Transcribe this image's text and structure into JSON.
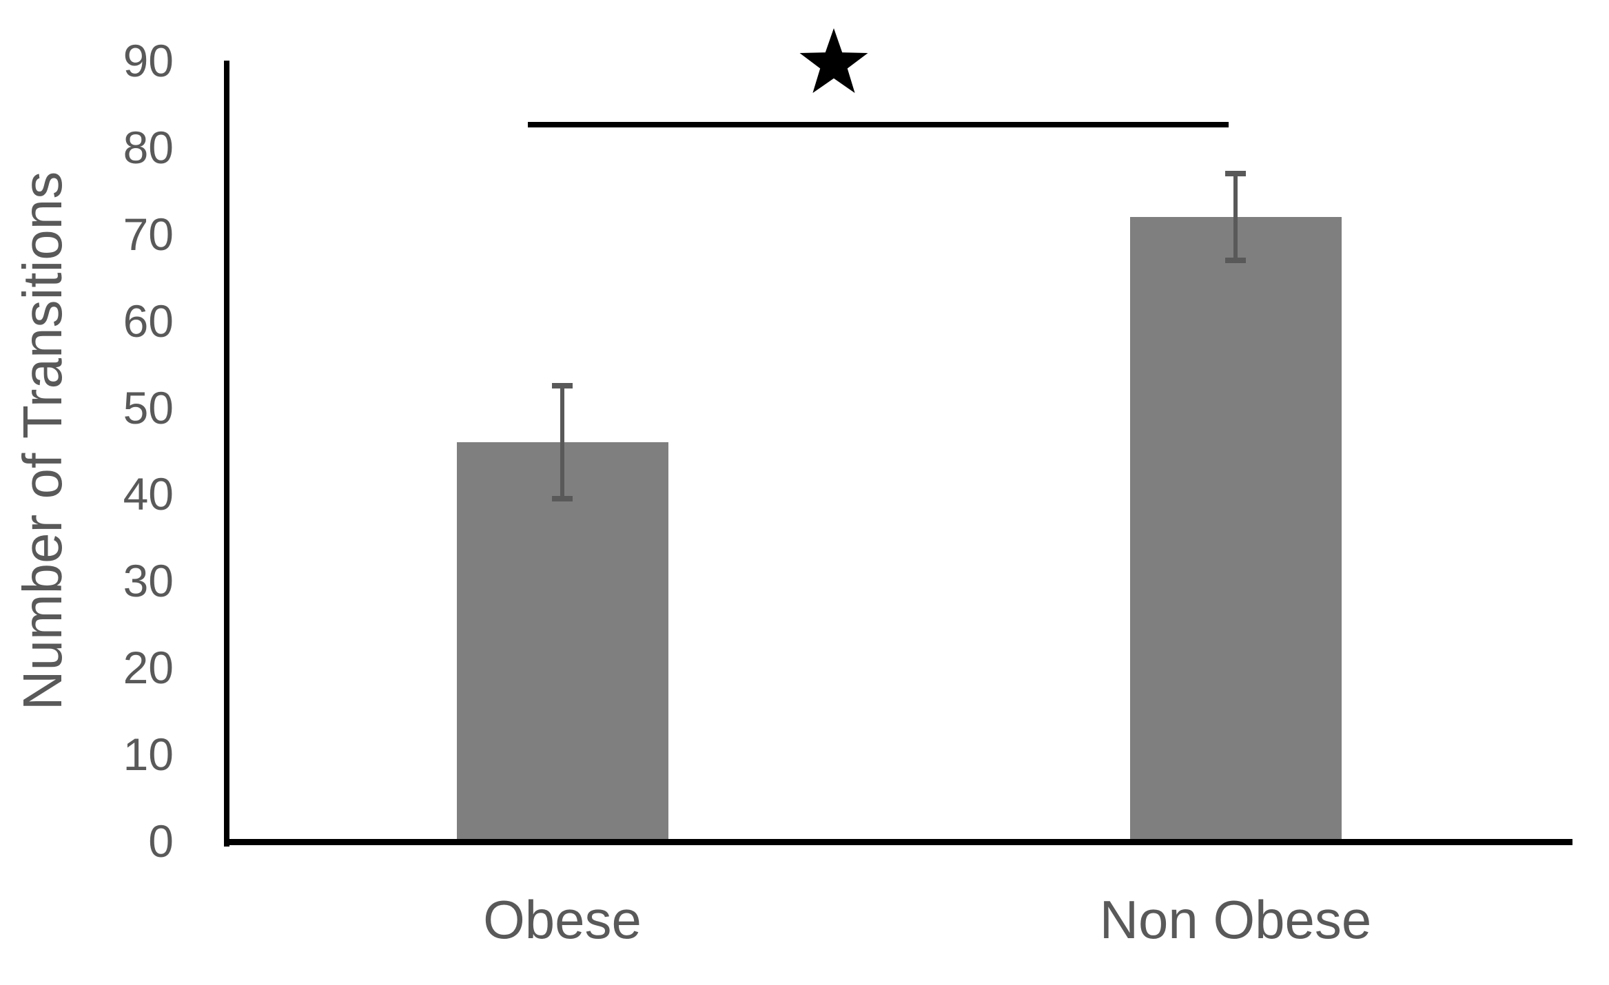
{
  "chart_data": {
    "type": "bar",
    "categories": [
      "Obese",
      "Non Obese"
    ],
    "values": [
      46,
      72
    ],
    "error_bars": [
      6.5,
      5
    ],
    "title": "",
    "xlabel": "",
    "ylabel": "Number of Transitions",
    "ylim": [
      0,
      90
    ],
    "ytick_interval": 10,
    "yticks": [
      90,
      80,
      70,
      60,
      50,
      40,
      30,
      20,
      10,
      0
    ],
    "grid": false,
    "legend": false,
    "bar_color": "#7F7F7F",
    "error_bar_color": "#595959",
    "axis_color": "#000000",
    "tick_label_color": "#595959",
    "significance": {
      "symbol": "star",
      "between": [
        "Obese",
        "Non Obese"
      ]
    }
  }
}
